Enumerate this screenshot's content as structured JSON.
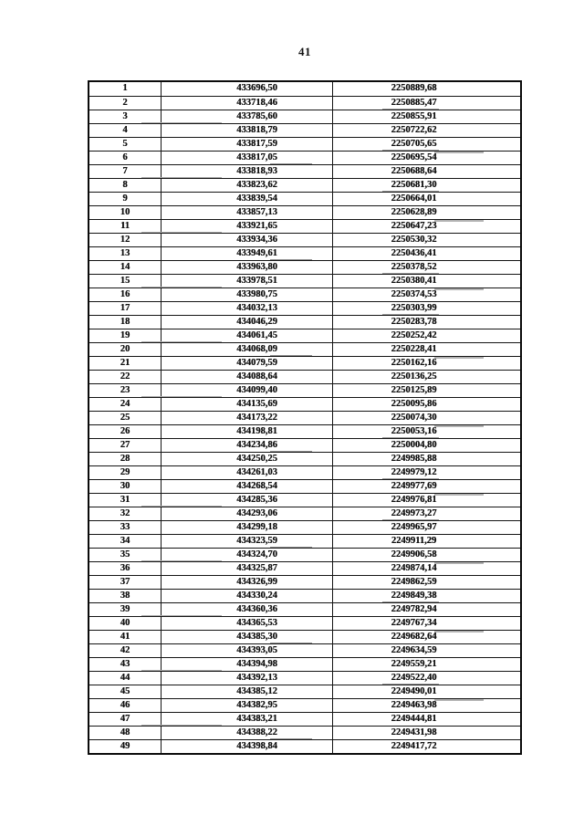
{
  "page": {
    "number": "41"
  },
  "table": {
    "rows": [
      [
        "1",
        "433696,50",
        "2250889,68"
      ],
      [
        "2",
        "433718,46",
        "2250885,47"
      ],
      [
        "3",
        "433785,60",
        "2250855,91"
      ],
      [
        "4",
        "433818,79",
        "2250722,62"
      ],
      [
        "5",
        "433817,59",
        "2250705,65"
      ],
      [
        "6",
        "433817,05",
        "2250695,54"
      ],
      [
        "7",
        "433818,93",
        "2250688,64"
      ],
      [
        "8",
        "433823,62",
        "2250681,30"
      ],
      [
        "9",
        "433839,54",
        "2250664,01"
      ],
      [
        "10",
        "433857,13",
        "2250628,89"
      ],
      [
        "11",
        "433921,65",
        "2250647,23"
      ],
      [
        "12",
        "433934,36",
        "2250530,32"
      ],
      [
        "13",
        "433949,61",
        "2250436,41"
      ],
      [
        "14",
        "433963,80",
        "2250378,52"
      ],
      [
        "15",
        "433978,51",
        "2250380,41"
      ],
      [
        "16",
        "433980,75",
        "2250374,53"
      ],
      [
        "17",
        "434032,13",
        "2250303,99"
      ],
      [
        "18",
        "434046,29",
        "2250283,78"
      ],
      [
        "19",
        "434061,45",
        "2250252,42"
      ],
      [
        "20",
        "434068,09",
        "2250228,41"
      ],
      [
        "21",
        "434079,59",
        "2250162,16"
      ],
      [
        "22",
        "434088,64",
        "2250136,25"
      ],
      [
        "23",
        "434099,40",
        "2250125,89"
      ],
      [
        "24",
        "434135,69",
        "2250095,86"
      ],
      [
        "25",
        "434173,22",
        "2250074,30"
      ],
      [
        "26",
        "434198,81",
        "2250053,16"
      ],
      [
        "27",
        "434234,86",
        "2250004,80"
      ],
      [
        "28",
        "434250,25",
        "2249985,88"
      ],
      [
        "29",
        "434261,03",
        "2249979,12"
      ],
      [
        "30",
        "434268,54",
        "2249977,69"
      ],
      [
        "31",
        "434285,36",
        "2249976,81"
      ],
      [
        "32",
        "434293,06",
        "2249973,27"
      ],
      [
        "33",
        "434299,18",
        "2249965,97"
      ],
      [
        "34",
        "434323,59",
        "2249911,29"
      ],
      [
        "35",
        "434324,70",
        "2249906,58"
      ],
      [
        "36",
        "434325,87",
        "2249874,14"
      ],
      [
        "37",
        "434326,99",
        "2249862,59"
      ],
      [
        "38",
        "434330,24",
        "2249849,38"
      ],
      [
        "39",
        "434360,36",
        "2249782,94"
      ],
      [
        "40",
        "434365,53",
        "2249767,34"
      ],
      [
        "41",
        "434385,30",
        "2249682,64"
      ],
      [
        "42",
        "434393,05",
        "2249634,59"
      ],
      [
        "43",
        "434394,98",
        "2249559,21"
      ],
      [
        "44",
        "434392,13",
        "2249522,40"
      ],
      [
        "45",
        "434385,12",
        "2249490,01"
      ],
      [
        "46",
        "434382,95",
        "2249463,98"
      ],
      [
        "47",
        "434383,21",
        "2249444,81"
      ],
      [
        "48",
        "434388,22",
        "2249431,98"
      ],
      [
        "49",
        "434398,84",
        "2249417,72"
      ]
    ]
  }
}
